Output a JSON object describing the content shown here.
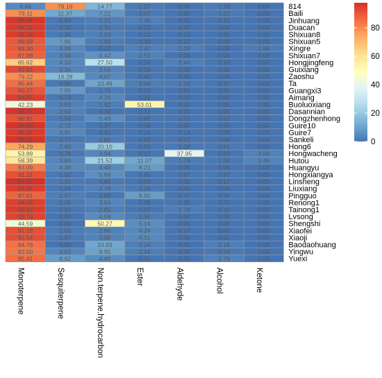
{
  "chart_data": {
    "type": "heatmap",
    "columns": [
      "Monoterpene",
      "Sesquiterpene",
      "Non.terpene.hydrocarbon",
      "Ester",
      "Aldehyde",
      "Alcohol",
      "Ketone"
    ],
    "rows": [
      "814",
      "Baili",
      "Jinhuang",
      "Duacan",
      "Shixuan8",
      "Shixuan5",
      "Xingre",
      "Shixuan7",
      "Hongjingfeng",
      "Guixiang",
      "Zaoshu",
      "Ta",
      "Guangxi3",
      "Aimang",
      "Buoluoxiang",
      "Dasannian",
      "Dongzhenhong",
      "Guire10",
      "Guire7",
      "Sankeli",
      "Hong6",
      "Hongwacheng",
      "Hutou",
      "Huangyu",
      "Hongxiangya",
      "Linsheng",
      "Liuxiang",
      "Pingguo",
      "Renong1",
      "Tainong1",
      "Lvsong",
      "Shengshi",
      "Xiaofei",
      "Xiaoji",
      "Baodaohuang",
      "Yingwu",
      "Yuexi"
    ],
    "values": [
      [
        4.46,
        79.16,
        14.77,
        1.27,
        0.0,
        1.18,
        0.0
      ],
      [
        79.11,
        11.37,
        7.22,
        1.07,
        0.0,
        1.22,
        0.0
      ],
      [
        96.48,
        0.89,
        2.21,
        2.46,
        0.0,
        0.15,
        0.0
      ],
      [
        95.31,
        0.32,
        1.31,
        0.13,
        0.0,
        0.0,
        0.0
      ],
      [
        95.19,
        1.36,
        2.33,
        0.22,
        0.1,
        0.0,
        0.0
      ],
      [
        89.59,
        7.96,
        1.98,
        0.3,
        0.17,
        0.0,
        0.0
      ],
      [
        89.3,
        3.98,
        0.22,
        2.47,
        2.26,
        0.09,
        1.69
      ],
      [
        87.98,
        3.08,
        6.42,
        2.51,
        0.0,
        0.0,
        0.0
      ],
      [
        65.62,
        4.1,
        27.5,
        0.18,
        2.44,
        0.19,
        0.0
      ],
      [
        92.81,
        3.34,
        3.56,
        0.29,
        0.0,
        0.0,
        0.0
      ],
      [
        79.22,
        16.28,
        4.07,
        0.42,
        0.0,
        0.0,
        0.0
      ],
      [
        85.44,
        0.88,
        10.49,
        1.64,
        1.28,
        0.27,
        0.0
      ],
      [
        90.17,
        7.95,
        1.7,
        0.13,
        0.06,
        0.0,
        0.0
      ],
      [
        94.87,
        0.73,
        4.2,
        0.21,
        0.0,
        0.0,
        0.0
      ],
      [
        42.23,
        2.53,
        1.92,
        53.01,
        0.07,
        0.05,
        0.2
      ],
      [
        96.71,
        2.63,
        0.38,
        0.12,
        0.1,
        0.0,
        0.0
      ],
      [
        90.91,
        1.56,
        5.49,
        0.88,
        0.52,
        0.63,
        0.0
      ],
      [
        96.8,
        2.72,
        0.37,
        0.08,
        0.0,
        0.0,
        0.0
      ],
      [
        95.37,
        3.91,
        0.41,
        0.14,
        0.14,
        0.0,
        0.0
      ],
      [
        96.95,
        0.77,
        1.85,
        0.03,
        0.21,
        0.0,
        0.0
      ],
      [
        74.29,
        2.8,
        20.1,
        0.83,
        1.08,
        0.91,
        0.0
      ],
      [
        53.89,
        0.78,
        3.94,
        0.17,
        37.95,
        0.23,
        3.06
      ],
      [
        58.39,
        3.6,
        21.52,
        11.07,
        1.79,
        1.04,
        3.46
      ],
      [
        83.09,
        4.3,
        4.49,
        8.21,
        0.0,
        0.0,
        0.0
      ],
      [
        91.11,
        1.02,
        5.68,
        0.65,
        0.67,
        0.87,
        0.0
      ],
      [
        97.57,
        1.32,
        0.89,
        0.05,
        0.0,
        0.17,
        0.0
      ],
      [
        94.97,
        1.04,
        2.79,
        1.24,
        0.0,
        0.04,
        0.0
      ],
      [
        87.61,
        2.07,
        0.89,
        8.5,
        0.37,
        0.56,
        0.0
      ],
      [
        94.59,
        1.05,
        3.64,
        0.39,
        0.35,
        0.07,
        0.0
      ],
      [
        95.12,
        0.62,
        2.05,
        0.37,
        1.73,
        0.11,
        0.0
      ],
      [
        93.79,
        0.0,
        4.59,
        1.56,
        0.0,
        0.06,
        0.0
      ],
      [
        44.59,
        0.0,
        50.27,
        5.14,
        0.0,
        0.0,
        0.0
      ],
      [
        91.18,
        1.55,
        2.86,
        4.24,
        0.17,
        0.0,
        0.0
      ],
      [
        91.54,
        1.07,
        3.06,
        4.31,
        0.0,
        0.02,
        0.0
      ],
      [
        84.76,
        0.0,
        10.83,
        2.24,
        0.0,
        2.18,
        0.0
      ],
      [
        83.5,
        3.62,
        9.95,
        2.14,
        0.0,
        0.79,
        0.0
      ],
      [
        85.41,
        8.62,
        4.86,
        0.31,
        0.0,
        2.79,
        0.0
      ]
    ],
    "legend": {
      "ticks": [
        0,
        20,
        40,
        60,
        80
      ],
      "range": [
        0,
        97.57
      ],
      "colors": [
        "#4575b4",
        "#74add1",
        "#abd9e9",
        "#e0f3f8",
        "#ffffbf",
        "#fee090",
        "#fdae61",
        "#f46d43",
        "#d73027"
      ],
      "placement": "right"
    }
  }
}
